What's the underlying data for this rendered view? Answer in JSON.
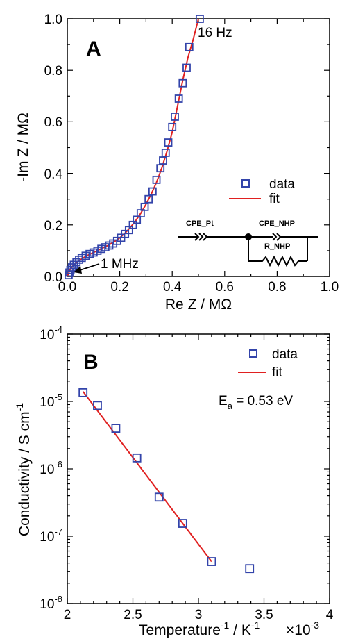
{
  "chart_data": [
    {
      "panel_label": "A",
      "type": "scatter",
      "xlabel": "Re Z / MΩ",
      "ylabel": "-Im Z / MΩ",
      "xlim": [
        0,
        1.0
      ],
      "ylim": [
        0,
        1.0
      ],
      "xticks": [
        "0.0",
        "0.2",
        "0.4",
        "0.6",
        "0.8",
        "1.0"
      ],
      "yticks": [
        "0.0",
        "0.2",
        "0.4",
        "0.6",
        "0.8",
        "1.0"
      ],
      "legend": {
        "position": "right-middle",
        "data_label": "data",
        "fit_label": "fit"
      },
      "annotations": {
        "high_freq": "1 MHz",
        "low_freq": "16 Hz"
      },
      "circuit_labels": {
        "cpe_pt": "CPE_Pt",
        "cpe_nhp": "CPE_NHP",
        "r_nhp": "R_NHP"
      },
      "series": [
        {
          "name": "data",
          "marker": "open-square",
          "color": "#3344aa",
          "points": [
            [
              0.005,
              0.005
            ],
            [
              0.008,
              0.015
            ],
            [
              0.012,
              0.025
            ],
            [
              0.018,
              0.035
            ],
            [
              0.025,
              0.045
            ],
            [
              0.035,
              0.055
            ],
            [
              0.045,
              0.065
            ],
            [
              0.055,
              0.072
            ],
            [
              0.07,
              0.08
            ],
            [
              0.085,
              0.087
            ],
            [
              0.1,
              0.093
            ],
            [
              0.115,
              0.1
            ],
            [
              0.13,
              0.107
            ],
            [
              0.145,
              0.113
            ],
            [
              0.16,
              0.12
            ],
            [
              0.175,
              0.128
            ],
            [
              0.19,
              0.138
            ],
            [
              0.205,
              0.15
            ],
            [
              0.22,
              0.165
            ],
            [
              0.235,
              0.18
            ],
            [
              0.25,
              0.2
            ],
            [
              0.265,
              0.22
            ],
            [
              0.28,
              0.245
            ],
            [
              0.295,
              0.27
            ],
            [
              0.31,
              0.3
            ],
            [
              0.325,
              0.33
            ],
            [
              0.34,
              0.375
            ],
            [
              0.355,
              0.42
            ],
            [
              0.365,
              0.45
            ],
            [
              0.375,
              0.48
            ],
            [
              0.385,
              0.52
            ],
            [
              0.4,
              0.58
            ],
            [
              0.41,
              0.62
            ],
            [
              0.425,
              0.69
            ],
            [
              0.44,
              0.75
            ],
            [
              0.455,
              0.81
            ],
            [
              0.465,
              0.89
            ],
            [
              0.505,
              1.0
            ]
          ]
        },
        {
          "name": "fit",
          "color": "#e02020",
          "points": [
            [
              0,
              0
            ],
            [
              0.01,
              0.025
            ],
            [
              0.02,
              0.04
            ],
            [
              0.04,
              0.058
            ],
            [
              0.06,
              0.072
            ],
            [
              0.08,
              0.083
            ],
            [
              0.1,
              0.093
            ],
            [
              0.12,
              0.103
            ],
            [
              0.14,
              0.113
            ],
            [
              0.16,
              0.123
            ],
            [
              0.18,
              0.135
            ],
            [
              0.2,
              0.15
            ],
            [
              0.22,
              0.168
            ],
            [
              0.24,
              0.19
            ],
            [
              0.26,
              0.215
            ],
            [
              0.28,
              0.245
            ],
            [
              0.3,
              0.28
            ],
            [
              0.32,
              0.32
            ],
            [
              0.34,
              0.365
            ],
            [
              0.36,
              0.42
            ],
            [
              0.38,
              0.485
            ],
            [
              0.4,
              0.56
            ],
            [
              0.42,
              0.66
            ],
            [
              0.44,
              0.76
            ],
            [
              0.46,
              0.85
            ],
            [
              0.48,
              0.92
            ],
            [
              0.5,
              1.0
            ]
          ]
        }
      ]
    },
    {
      "panel_label": "B",
      "type": "scatter",
      "xlabel_main": "Temperature",
      "xlabel_sup1": "-1",
      "xlabel_mid": " / K",
      "xlabel_sup2": "-1",
      "xlabel_mult": "×10",
      "xlabel_mult_exp": "-3",
      "ylabel_main": "Conductivity / S cm",
      "ylabel_sup": "-1",
      "xlim": [
        2,
        4
      ],
      "y_scale": "log",
      "ylim": [
        1e-08,
        0.0001
      ],
      "xticks": [
        "2",
        "2.5",
        "3",
        "3.5",
        "4"
      ],
      "yticks": [
        {
          "base": "10",
          "exp": "-4"
        },
        {
          "base": "10",
          "exp": "-5"
        },
        {
          "base": "10",
          "exp": "-6"
        },
        {
          "base": "10",
          "exp": "-7"
        },
        {
          "base": "10",
          "exp": "-8"
        }
      ],
      "legend": {
        "position": "top-right",
        "data_label": "data",
        "fit_label": "fit"
      },
      "annotation": {
        "prefix": "E",
        "sub": "a",
        "suffix": " = 0.53 eV"
      },
      "series": [
        {
          "name": "data",
          "marker": "open-square",
          "color": "#3344aa",
          "points": [
            [
              2.12,
              1.35e-05
            ],
            [
              2.23,
              8.7e-06
            ],
            [
              2.37,
              4e-06
            ],
            [
              2.53,
              1.45e-06
            ],
            [
              2.7,
              3.8e-07
            ],
            [
              2.88,
              1.55e-07
            ],
            [
              3.1,
              4.2e-08
            ],
            [
              3.39,
              3.3e-08
            ]
          ]
        },
        {
          "name": "fit",
          "color": "#e02020",
          "points": [
            [
              2.12,
              1.4e-05
            ],
            [
              3.1,
              4.2e-08
            ]
          ]
        }
      ]
    }
  ]
}
